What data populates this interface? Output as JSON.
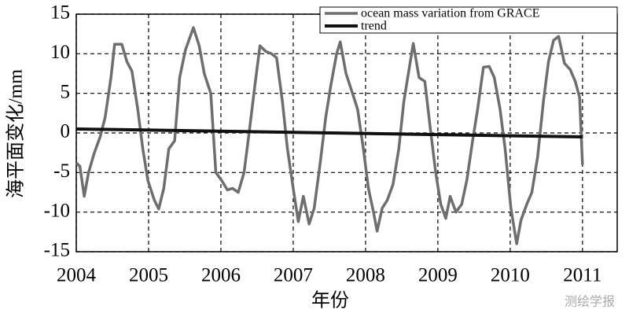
{
  "chart_data": {
    "type": "line",
    "ylabel": "海平面变化/mm",
    "xlabel": "年份",
    "watermark": "测绘学报",
    "xlim": [
      2004,
      2011.48
    ],
    "ylim": [
      -15,
      15
    ],
    "xticks": [
      2004,
      2005,
      2006,
      2007,
      2008,
      2009,
      2010,
      2011
    ],
    "yticks": [
      -15,
      -10,
      -5,
      0,
      5,
      10,
      15
    ],
    "grid": true,
    "legend": "upper right",
    "series": [
      {
        "name": "ocean mass variation from GRACE",
        "color": "#6e6e6e",
        "x": [
          2004.0,
          2004.05,
          2004.11,
          2004.17,
          2004.25,
          2004.33,
          2004.4,
          2004.48,
          2004.53,
          2004.63,
          2004.7,
          2004.77,
          2004.85,
          2004.92,
          2004.99,
          2005.08,
          2005.14,
          2005.21,
          2005.28,
          2005.36,
          2005.43,
          2005.51,
          2005.62,
          2005.7,
          2005.77,
          2005.86,
          2005.93,
          2006.01,
          2006.09,
          2006.16,
          2006.24,
          2006.32,
          2006.39,
          2006.47,
          2006.54,
          2006.62,
          2006.7,
          2006.77,
          2006.85,
          2006.92,
          2007.0,
          2007.07,
          2007.14,
          2007.22,
          2007.29,
          2007.37,
          2007.45,
          2007.52,
          2007.6,
          2007.65,
          2007.73,
          2007.82,
          2007.89,
          2007.97,
          2008.04,
          2008.11,
          2008.16,
          2008.23,
          2008.3,
          2008.38,
          2008.46,
          2008.53,
          2008.61,
          2008.66,
          2008.74,
          2008.82,
          2008.89,
          2008.97,
          2009.04,
          2009.11,
          2009.17,
          2009.25,
          2009.33,
          2009.4,
          2009.48,
          2009.55,
          2009.63,
          2009.71,
          2009.78,
          2009.86,
          2009.93,
          2010.01,
          2010.09,
          2010.15,
          2010.23,
          2010.3,
          2010.38,
          2010.46,
          2010.53,
          2010.6,
          2010.67,
          2010.75,
          2010.83,
          2010.9,
          2010.96,
          2011.0
        ],
        "values": [
          -3.8,
          -4.2,
          -8,
          -5,
          -2.5,
          -0.5,
          2,
          7,
          11.2,
          11.2,
          9,
          7.8,
          3,
          -2,
          -6,
          -8.5,
          -9.6,
          -7,
          -2,
          -1,
          7,
          10.5,
          13.3,
          11,
          7.5,
          5,
          -5,
          -6,
          -7.2,
          -7,
          -7.5,
          -5,
          0,
          6,
          11,
          10.3,
          10,
          9.5,
          4,
          -2,
          -7,
          -11.2,
          -8,
          -11.5,
          -9.5,
          -4,
          2,
          6,
          10,
          11.5,
          7.5,
          5,
          3,
          -2,
          -7,
          -10,
          -12.4,
          -9.5,
          -8.5,
          -6.5,
          -2,
          4,
          8.5,
          11.3,
          7,
          6.5,
          1,
          -5,
          -9,
          -10.8,
          -8,
          -10,
          -9,
          -6,
          -1,
          3,
          8.3,
          8.4,
          7,
          3,
          -2,
          -9.5,
          -14,
          -11,
          -9,
          -7.5,
          -3,
          4,
          9,
          11.7,
          12.2,
          8.8,
          8,
          6.5,
          4.5,
          -4
        ]
      },
      {
        "name": "trend",
        "color": "#111111",
        "x": [
          2004,
          2011
        ],
        "values": [
          0.5,
          -0.5
        ]
      }
    ]
  }
}
